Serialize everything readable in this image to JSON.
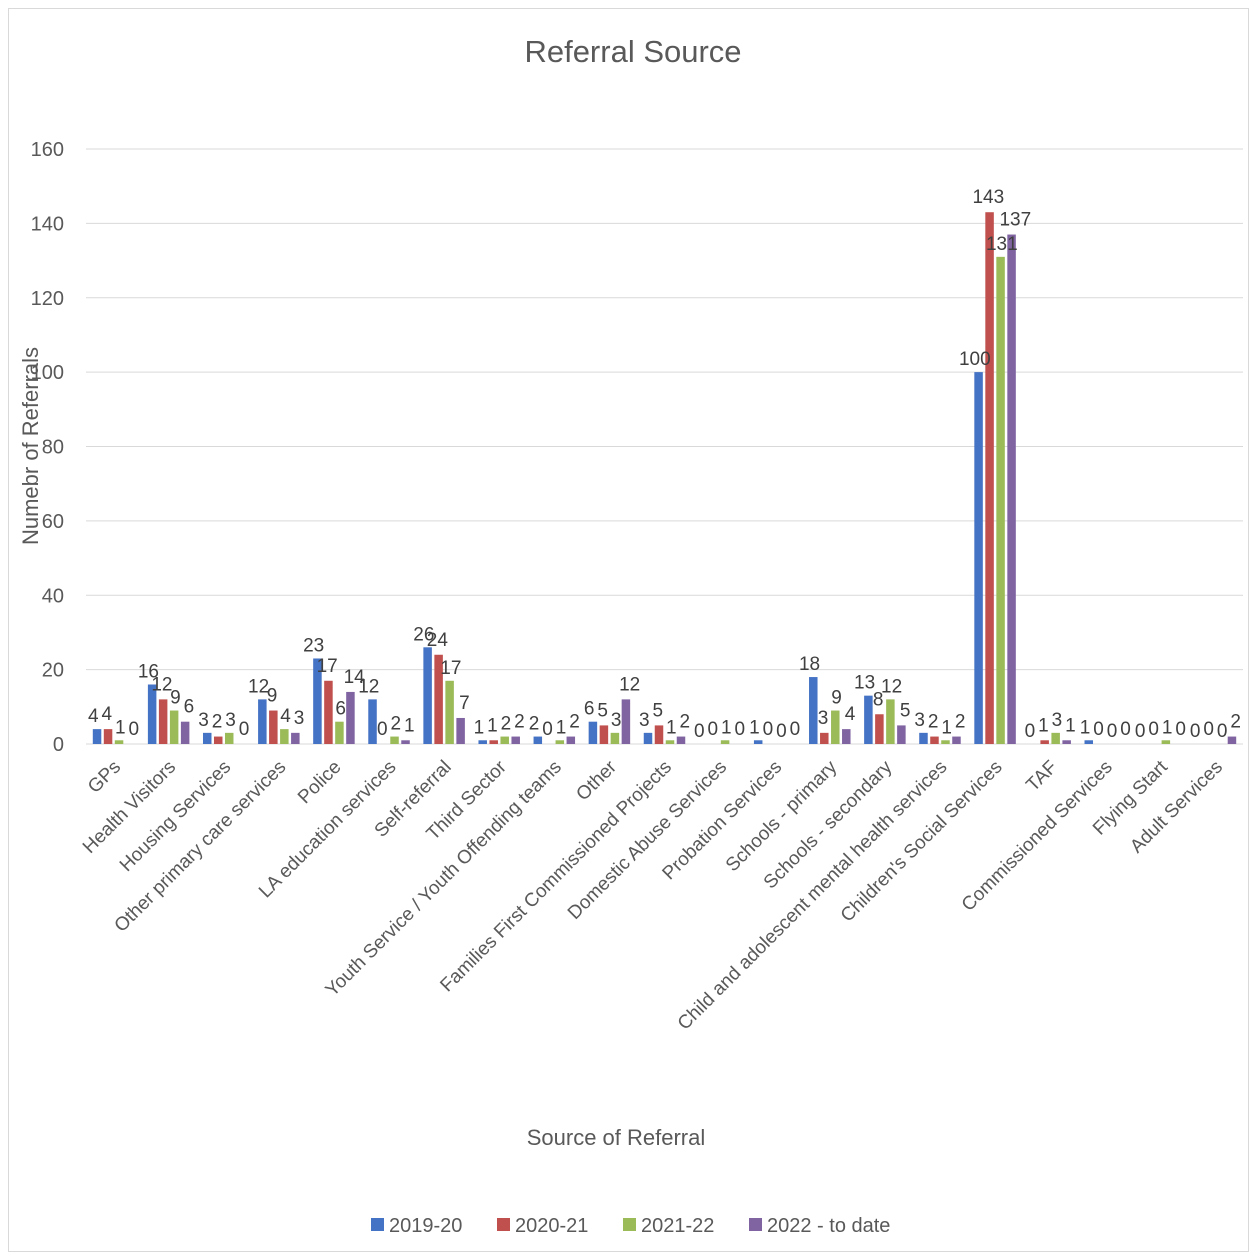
{
  "chart_data": {
    "type": "bar",
    "title": "Referral Source",
    "xlabel": "Source of Referral",
    "ylabel": "Numebr of Referrals",
    "ylim": [
      0,
      160
    ],
    "yticks": [
      0,
      20,
      40,
      60,
      80,
      100,
      120,
      140,
      160
    ],
    "grid": true,
    "legend_position": "bottom",
    "categories": [
      "GPs",
      "Health Visitors",
      "Housing Services",
      "Other primary care services",
      "Police",
      "LA education services",
      "Self-referral",
      "Third Sector",
      "Youth Service / Youth Offending teams",
      "Other",
      "Families First Commissioned Projects",
      "Domestic Abuse Services",
      "Probation Services",
      "Schools - primary",
      "Schools - secondary",
      "Child and adolescent mental health services",
      "Children's Social Services",
      "TAF",
      "Commissioned Services",
      "Flying Start",
      "Adult Services"
    ],
    "series": [
      {
        "name": "2019-20",
        "color": "#4472c4",
        "values": [
          4,
          16,
          3,
          12,
          23,
          12,
          26,
          1,
          2,
          6,
          3,
          0,
          1,
          18,
          13,
          3,
          100,
          0,
          1,
          0,
          0
        ]
      },
      {
        "name": "2020-21",
        "color": "#c0504d",
        "values": [
          4,
          12,
          2,
          9,
          17,
          0,
          24,
          1,
          0,
          5,
          5,
          0,
          0,
          3,
          8,
          2,
          143,
          1,
          0,
          0,
          0
        ]
      },
      {
        "name": "2021-22",
        "color": "#9bbb59",
        "values": [
          1,
          9,
          3,
          4,
          6,
          2,
          17,
          2,
          1,
          3,
          1,
          1,
          0,
          9,
          12,
          1,
          131,
          3,
          0,
          1,
          0
        ]
      },
      {
        "name": "2022 - to date",
        "color": "#8064a2",
        "values": [
          0,
          6,
          0,
          3,
          14,
          1,
          7,
          2,
          2,
          12,
          2,
          0,
          0,
          4,
          5,
          2,
          137,
          1,
          0,
          0,
          2
        ]
      }
    ]
  }
}
